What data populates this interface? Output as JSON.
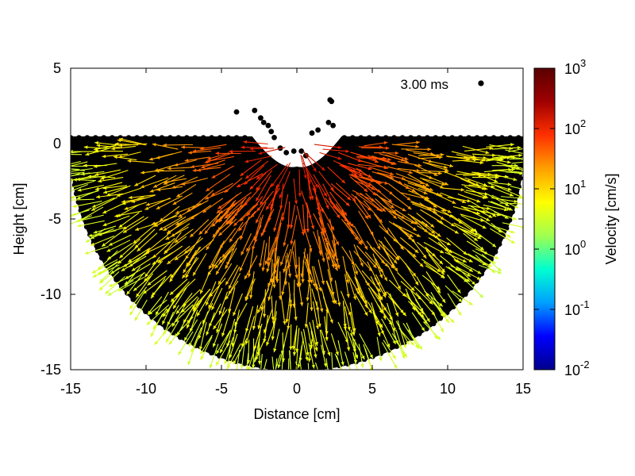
{
  "chart_data": {
    "type": "vector-field",
    "title": "",
    "xlabel": "Distance [cm]",
    "ylabel": "Height [cm]",
    "xlim": [
      -15,
      15
    ],
    "ylim": [
      -15,
      5
    ],
    "x_ticks": [
      -15,
      -10,
      -5,
      0,
      5,
      10,
      15
    ],
    "y_ticks": [
      5,
      0,
      -5,
      -10,
      -15
    ],
    "annotation": {
      "text": "3.00 ms",
      "marker": "point",
      "position": "top-right"
    },
    "colorbar": {
      "label": "Velocity [cm/s]",
      "scale": "log",
      "min": 0.01,
      "max": 1000,
      "tick_exponents": [
        "3",
        "2",
        "1",
        "0",
        "-1",
        "-2"
      ],
      "tick_base": "10",
      "colormap": [
        "#00008c",
        "#0000ff",
        "#00a0ff",
        "#00ffd0",
        "#a0ff50",
        "#ffff00",
        "#ffa000",
        "#ff3000",
        "#a00000",
        "#5a0000"
      ]
    },
    "domain": {
      "shape": "half-disk",
      "center": [
        0,
        0
      ],
      "radius": 15,
      "surface_height": 0.4,
      "crater": {
        "center": 0,
        "half_width": 3,
        "depth": 2.0
      }
    },
    "ejecta": [
      [
        -4.0,
        2.1
      ],
      [
        -2.8,
        2.2
      ],
      [
        -2.4,
        1.7
      ],
      [
        -2.2,
        1.4
      ],
      [
        -1.9,
        1.2
      ],
      [
        2.2,
        2.9
      ],
      [
        2.3,
        2.8
      ],
      [
        1.0,
        0.7
      ],
      [
        2.1,
        1.4
      ],
      [
        2.4,
        1.2
      ],
      [
        12.2,
        4.0
      ],
      [
        -1.7,
        0.8
      ],
      [
        -1.5,
        0.4
      ],
      [
        1.4,
        0.9
      ],
      [
        -0.7,
        -0.6
      ],
      [
        0.3,
        -0.5
      ],
      [
        -0.2,
        -0.5
      ],
      [
        0.6,
        -0.8
      ],
      [
        -1.1,
        -0.3
      ]
    ],
    "velocity_model": {
      "peak_cm_s": 200,
      "decay_length_cm": 3.2,
      "floor_cm_s": 0.5,
      "direction": "radially outward from crater center (0, 0)"
    }
  }
}
